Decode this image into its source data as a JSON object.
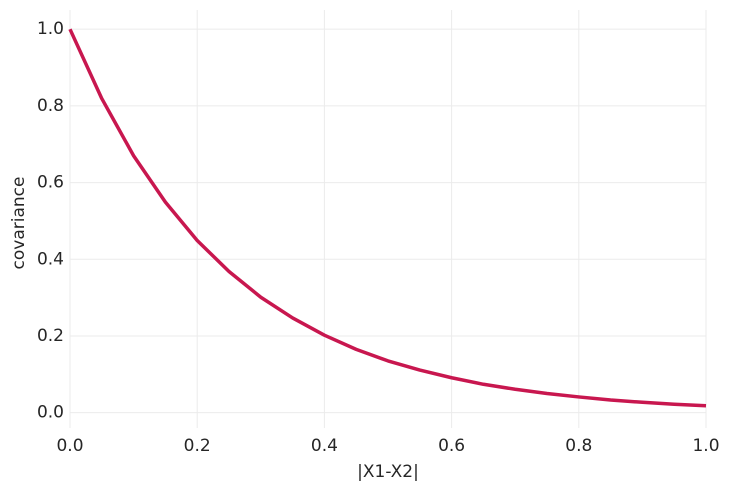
{
  "chart_data": {
    "type": "line",
    "x_label": "|X1-X2|",
    "y_label": "covariance",
    "x": [
      0,
      0.05,
      0.1,
      0.15,
      0.2,
      0.25,
      0.3,
      0.35,
      0.4,
      0.45,
      0.5,
      0.55,
      0.6,
      0.65,
      0.7,
      0.75,
      0.8,
      0.85,
      0.9,
      0.95,
      1.0
    ],
    "values": [
      1.0,
      0.819,
      0.67,
      0.549,
      0.449,
      0.368,
      0.301,
      0.247,
      0.202,
      0.165,
      0.135,
      0.111,
      0.091,
      0.074,
      0.061,
      0.05,
      0.041,
      0.033,
      0.027,
      0.022,
      0.018
    ],
    "color": "#c8174f",
    "xlim": [
      0,
      1
    ],
    "ylim": [
      -0.04,
      1.05
    ],
    "xticks": [
      {
        "value": 0,
        "label": "0.0"
      },
      0.2,
      0.4,
      0.6,
      0.8,
      {
        "value": 1,
        "label": "1.0"
      }
    ],
    "yticks": [
      {
        "value": 0,
        "label": "0.0"
      },
      0.2,
      0.4,
      0.6,
      0.8,
      {
        "value": 1,
        "label": "1.0"
      }
    ],
    "grid": true
  }
}
